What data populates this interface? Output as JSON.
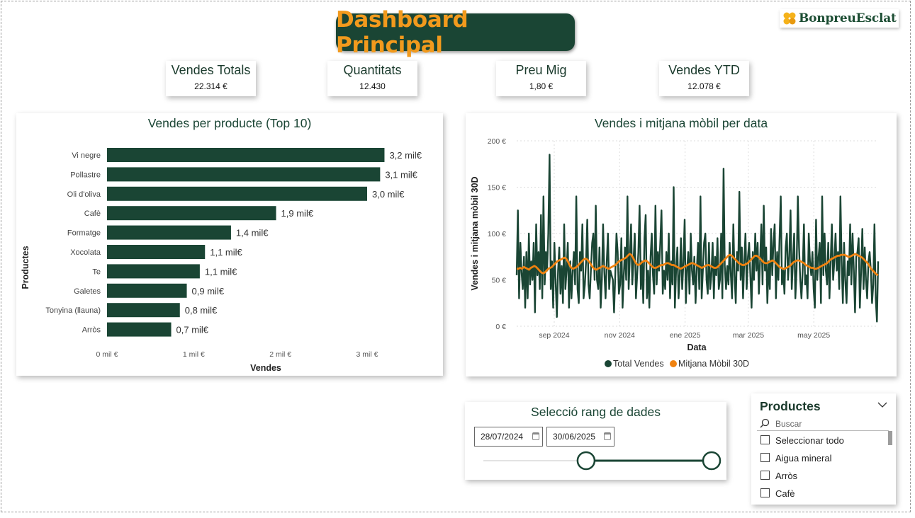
{
  "dashboard_title": "Dashboard Principal",
  "brand": {
    "name": "BonpreuEsclat",
    "colors": {
      "primary": "#1a4534",
      "accent": "#f29a1d",
      "logo_yellow": "#f5b21b"
    }
  },
  "kpis": [
    {
      "title": "Vendes Totals",
      "value": "22.314 €"
    },
    {
      "title": "Quantitats",
      "value": "12.430"
    },
    {
      "title": "Preu Mig",
      "value": "1,80 €"
    },
    {
      "title": "Vendes YTD",
      "value": "12.078 €"
    }
  ],
  "bar_chart": {
    "title": "Vendes per producte (Top 10)",
    "xlabel": "Vendes",
    "ylabel": "Productes",
    "xticks": [
      "0 mil €",
      "1 mil €",
      "2 mil €",
      "3 mil €"
    ]
  },
  "line_chart": {
    "title": "Vendes i mitjana mòbil per data",
    "xlabel": "Data",
    "ylabel": "Vendes i mitjana mòbil 30D",
    "yticks": [
      "200 €",
      "150 €",
      "100 €",
      "50 €",
      "0 €"
    ],
    "xticks": [
      "sep 2024",
      "nov 2024",
      "ene 2025",
      "mar 2025",
      "may 2025"
    ],
    "legend": [
      "Total Vendes",
      "Mitjana Mòbil 30D"
    ]
  },
  "date_slicer": {
    "title": "Selecció rang de dades",
    "start": "28/07/2024",
    "end": "30/06/2025",
    "range_fraction": [
      0.45,
      1.0
    ]
  },
  "products_slicer": {
    "title": "Productes",
    "search_placeholder": "Buscar",
    "items": [
      "Seleccionar todo",
      "Aigua mineral",
      "Arròs",
      "Cafè"
    ]
  },
  "chart_data": [
    {
      "type": "bar",
      "orientation": "horizontal",
      "title": "Vendes per producte (Top 10)",
      "xlabel": "Vendes",
      "ylabel": "Productes",
      "categories": [
        "Vi negre",
        "Pollastre",
        "Oli d'oliva",
        "Cafè",
        "Formatge",
        "Xocolata",
        "Te",
        "Galetes",
        "Tonyina (llauna)",
        "Arròs"
      ],
      "values": [
        3200,
        3150,
        3000,
        1950,
        1430,
        1130,
        1070,
        920,
        840,
        740
      ],
      "data_labels": [
        "3,2 mil€",
        "3,1 mil€",
        "3,0 mil€",
        "1,9 mil€",
        "1,4 mil€",
        "1,1 mil€",
        "1,1 mil€",
        "0,9 mil€",
        "0,8 mil€",
        "0,7 mil€"
      ],
      "xlim": [
        0,
        3300
      ],
      "color": "#1a4534"
    },
    {
      "type": "line",
      "title": "Vendes i mitjana mòbil per data",
      "xlabel": "Data",
      "ylabel": "Vendes i mitjana mòbil 30D",
      "x_range": [
        "2024-07-28",
        "2025-06-30"
      ],
      "ylim": [
        0,
        200
      ],
      "grid": true,
      "legend_position": "bottom",
      "series": [
        {
          "name": "Total Vendes",
          "color": "#1a4534",
          "values": [
            55,
            125,
            30,
            90,
            58,
            40,
            75,
            20,
            80,
            30,
            100,
            45,
            70,
            50,
            90,
            15,
            110,
            55,
            80,
            40,
            120,
            30,
            140,
            45,
            80,
            60,
            100,
            185,
            40,
            70,
            20,
            90,
            50,
            10,
            60,
            85,
            35,
            65,
            25,
            110,
            40,
            60,
            90,
            20,
            70,
            30,
            60,
            80,
            45,
            140,
            40,
            25,
            80,
            60,
            110,
            30,
            45,
            70,
            115,
            45,
            30,
            60,
            90,
            100,
            50,
            130,
            50,
            40,
            85,
            20,
            50,
            110,
            60,
            30,
            70,
            100,
            40,
            60,
            55,
            50,
            15,
            55,
            100,
            80,
            35,
            45,
            95,
            20,
            55,
            85,
            50,
            140,
            40,
            75,
            110,
            45,
            70,
            100,
            30,
            55,
            80,
            130,
            40,
            70,
            25,
            95,
            120,
            30,
            60,
            20,
            75,
            100,
            55,
            35,
            130,
            45,
            80,
            60,
            90,
            125,
            35,
            60,
            40,
            80,
            50,
            100,
            30,
            70,
            45,
            150,
            20,
            60,
            85,
            30,
            55,
            95,
            40,
            70,
            115,
            25,
            60,
            80,
            35,
            100,
            60,
            45,
            75,
            25,
            60,
            90,
            40,
            140,
            30,
            60,
            90,
            100,
            50,
            35,
            90,
            40,
            55,
            90,
            30,
            75,
            55,
            95,
            40,
            50,
            100,
            30,
            170,
            65,
            40,
            65,
            45,
            90,
            55,
            30,
            110,
            55,
            25,
            80,
            60,
            145,
            50,
            85,
            30,
            70,
            100,
            40,
            75,
            90,
            55,
            20,
            80,
            50,
            100,
            60,
            90,
            35,
            70,
            110,
            45,
            130,
            60,
            85,
            25,
            70,
            40,
            105,
            55,
            90,
            110,
            30,
            80,
            50,
            95,
            140,
            45,
            60,
            35,
            85,
            100,
            50,
            75,
            125,
            40,
            70,
            100,
            30,
            60,
            140,
            85,
            50,
            30,
            60,
            110,
            45,
            55,
            30,
            100,
            70,
            55,
            80,
            40,
            20,
            115,
            50,
            75,
            90,
            25,
            140,
            55,
            100,
            60,
            45,
            90,
            30,
            70,
            110,
            50,
            70,
            100,
            60,
            80,
            40,
            140,
            70,
            25,
            90,
            50,
            25,
            70,
            55,
            110,
            45,
            100,
            60,
            15,
            75,
            80,
            95,
            20,
            60,
            105,
            40,
            85,
            50,
            30,
            70,
            80,
            60,
            25,
            45,
            110,
            30,
            5,
            70
          ]
        },
        {
          "name": "Mitjana Mòbil 30D",
          "color": "#f0820f",
          "values": [
            62,
            62,
            63,
            62,
            64,
            63,
            62,
            61,
            63,
            64,
            65,
            64,
            62,
            60,
            58,
            57,
            58,
            60,
            62,
            63,
            64,
            66,
            68,
            70,
            71,
            72,
            73,
            74,
            73,
            70,
            66,
            63,
            62,
            63,
            64,
            66,
            68,
            70,
            72,
            73,
            72,
            70,
            67,
            64,
            62,
            61,
            62,
            63,
            64,
            65,
            64,
            63,
            62,
            63,
            64,
            65,
            66,
            68,
            70,
            71,
            72,
            73,
            74,
            76,
            78,
            77,
            74,
            70,
            67,
            66,
            67,
            69,
            70,
            71,
            70,
            68,
            66,
            64,
            63,
            63,
            64,
            65,
            66,
            66,
            67,
            68,
            68,
            67,
            66,
            66,
            65,
            64,
            63,
            62,
            63,
            64,
            65,
            66,
            67,
            68,
            68,
            67,
            66,
            65,
            64,
            63,
            64,
            65,
            66,
            66,
            65,
            64,
            63,
            63,
            64,
            66,
            68,
            70,
            72,
            74,
            76,
            77,
            76,
            74,
            72,
            70,
            68,
            67,
            66,
            66,
            67,
            68,
            70,
            72,
            74,
            76,
            76,
            75,
            73,
            71,
            69,
            68,
            68,
            69,
            70,
            71,
            70,
            68,
            66,
            64,
            63,
            62,
            62,
            63,
            64,
            65,
            67,
            69,
            70,
            71,
            71,
            70,
            69,
            68,
            66,
            65,
            64,
            63,
            63,
            62,
            62,
            63,
            64,
            65,
            66,
            67,
            68,
            70,
            72,
            73,
            74,
            75,
            76,
            76,
            77,
            77,
            77,
            76,
            75,
            75,
            76,
            77,
            78,
            77,
            76,
            75,
            74,
            72,
            70,
            68,
            65,
            62,
            60,
            58,
            56,
            55
          ]
        }
      ],
      "xticks": [
        "sep 2024",
        "nov 2024",
        "ene 2025",
        "mar 2025",
        "may 2025"
      ],
      "yticks": [
        "200 €",
        "150 €",
        "100 €",
        "50 €",
        "0 €"
      ]
    }
  ]
}
